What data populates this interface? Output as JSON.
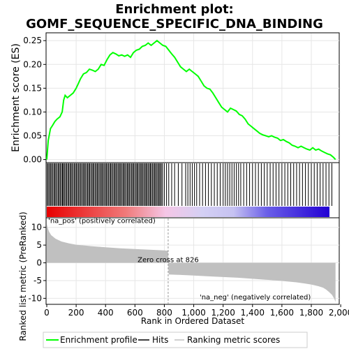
{
  "title_line1": "Enrichment plot:",
  "title_line2": "GOMF_SEQUENCE_SPECIFIC_DNA_BINDING",
  "colors": {
    "enrichment": "#00ff00",
    "hits": "#000000",
    "metric_fill": "#c0c0c0",
    "panel_border": "#000000",
    "grid": "#e6e6e6",
    "positive_band": "#e80000",
    "negative_band": "#2200d4"
  },
  "chart_data": [
    {
      "type": "line",
      "name": "enrichment-panel",
      "ylabel": "Enrichment score (ES)",
      "xlim": [
        0,
        1990
      ],
      "ylim": [
        -0.005,
        0.265
      ],
      "yticks": [
        0.0,
        0.05,
        0.1,
        0.15,
        0.2,
        0.25
      ],
      "ytick_labels": [
        "0.00",
        "0.05",
        "0.10",
        "0.15",
        "0.20",
        "0.25"
      ],
      "grid": true,
      "series": [
        {
          "name": "Enrichment profile",
          "x": [
            0,
            10,
            25,
            40,
            55,
            70,
            90,
            105,
            115,
            125,
            140,
            160,
            180,
            200,
            215,
            230,
            250,
            270,
            290,
            310,
            330,
            350,
            370,
            390,
            410,
            430,
            450,
            470,
            490,
            510,
            530,
            550,
            570,
            590,
            610,
            630,
            650,
            670,
            690,
            710,
            730,
            750,
            770,
            790,
            810,
            830,
            850,
            870,
            890,
            910,
            930,
            950,
            970,
            990,
            1010,
            1030,
            1050,
            1070,
            1090,
            1110,
            1130,
            1150,
            1170,
            1190,
            1210,
            1230,
            1250,
            1270,
            1290,
            1310,
            1330,
            1350,
            1370,
            1390,
            1410,
            1430,
            1450,
            1470,
            1490,
            1510,
            1530,
            1550,
            1570,
            1590,
            1610,
            1630,
            1650,
            1670,
            1690,
            1710,
            1730,
            1750,
            1770,
            1790,
            1810,
            1830,
            1850,
            1870,
            1890,
            1910,
            1930,
            1950,
            1965
          ],
          "y": [
            0.0,
            0.04,
            0.065,
            0.072,
            0.08,
            0.085,
            0.09,
            0.1,
            0.125,
            0.135,
            0.13,
            0.135,
            0.14,
            0.15,
            0.16,
            0.17,
            0.18,
            0.183,
            0.19,
            0.188,
            0.185,
            0.19,
            0.2,
            0.198,
            0.21,
            0.22,
            0.225,
            0.222,
            0.218,
            0.22,
            0.217,
            0.22,
            0.215,
            0.225,
            0.23,
            0.232,
            0.238,
            0.24,
            0.245,
            0.24,
            0.245,
            0.25,
            0.245,
            0.24,
            0.238,
            0.23,
            0.222,
            0.215,
            0.205,
            0.195,
            0.19,
            0.185,
            0.19,
            0.185,
            0.18,
            0.175,
            0.165,
            0.155,
            0.15,
            0.148,
            0.14,
            0.13,
            0.12,
            0.11,
            0.105,
            0.1,
            0.108,
            0.105,
            0.102,
            0.095,
            0.092,
            0.085,
            0.075,
            0.07,
            0.065,
            0.06,
            0.055,
            0.052,
            0.05,
            0.048,
            0.05,
            0.047,
            0.045,
            0.04,
            0.042,
            0.038,
            0.035,
            0.03,
            0.028,
            0.025,
            0.028,
            0.025,
            0.022,
            0.02,
            0.025,
            0.02,
            0.022,
            0.018,
            0.015,
            0.012,
            0.01,
            0.005,
            0.0
          ]
        }
      ]
    },
    {
      "type": "scatter",
      "name": "hits-panel",
      "series": [
        {
          "name": "Hits",
          "x": [
            3,
            10,
            18,
            25,
            32,
            40,
            48,
            55,
            62,
            70,
            78,
            85,
            92,
            100,
            107,
            113,
            120,
            128,
            135,
            143,
            150,
            158,
            165,
            172,
            180,
            188,
            195,
            202,
            210,
            217,
            225,
            232,
            240,
            248,
            255,
            262,
            270,
            278,
            285,
            292,
            300,
            308,
            315,
            322,
            330,
            338,
            345,
            352,
            360,
            368,
            375,
            382,
            390,
            398,
            405,
            412,
            420,
            428,
            435,
            442,
            450,
            458,
            465,
            472,
            480,
            488,
            495,
            502,
            510,
            518,
            525,
            532,
            540,
            548,
            555,
            562,
            570,
            578,
            585,
            592,
            600,
            608,
            615,
            622,
            630,
            638,
            645,
            652,
            660,
            668,
            675,
            682,
            690,
            698,
            705,
            712,
            720,
            728,
            735,
            742,
            750,
            758,
            765,
            772,
            780,
            788,
            800,
            815,
            830,
            850,
            870,
            895,
            920,
            945,
            960,
            975,
            990,
            1005,
            1020,
            1040,
            1060,
            1080,
            1100,
            1120,
            1140,
            1160,
            1180,
            1200,
            1215,
            1230,
            1245,
            1260,
            1275,
            1290,
            1305,
            1320,
            1340,
            1360,
            1380,
            1400,
            1420,
            1440,
            1460,
            1480,
            1500,
            1520,
            1540,
            1560,
            1580,
            1600,
            1620,
            1640,
            1660,
            1680,
            1700,
            1720,
            1740,
            1760,
            1780,
            1800,
            1820,
            1840,
            1860,
            1880,
            1900,
            1920,
            1940
          ]
        }
      ],
      "ranking_gradient": {
        "positive_color": "#e80000",
        "negative_color": "#2200d4"
      }
    },
    {
      "type": "area",
      "name": "ranked-metric-panel",
      "xlabel": "Rank in Ordered Dataset",
      "ylabel": "Ranked list metric (PreRanked)",
      "xlim": [
        0,
        1990
      ],
      "ylim": [
        -11.5,
        12.5
      ],
      "xticks": [
        0,
        200,
        400,
        600,
        800,
        1000,
        1200,
        1400,
        1600,
        1800,
        2000
      ],
      "xtick_labels": [
        "0",
        "200",
        "400",
        "600",
        "800",
        "1,000",
        "1,200",
        "1,400",
        "1,600",
        "1,800",
        "2,000"
      ],
      "yticks": [
        -10,
        -5,
        0,
        5,
        10
      ],
      "ytick_labels": [
        "-10",
        "-5",
        "0",
        "5",
        "10"
      ],
      "grid": true,
      "series": [
        {
          "name": "Ranking metric scores",
          "x": [
            0,
            5,
            15,
            30,
            60,
            100,
            150,
            200,
            300,
            400,
            500,
            600,
            700,
            800,
            825,
            826,
            830,
            900,
            1000,
            1100,
            1200,
            1300,
            1400,
            1500,
            1600,
            1700,
            1750,
            1800,
            1850,
            1880,
            1900,
            1920,
            1940,
            1955,
            1965
          ],
          "y": [
            11.0,
            10.0,
            8.8,
            7.8,
            6.8,
            6.0,
            5.5,
            5.1,
            4.7,
            4.4,
            4.1,
            3.9,
            3.7,
            3.5,
            3.4,
            0,
            -3.3,
            -3.4,
            -3.6,
            -3.8,
            -4.0,
            -4.2,
            -4.5,
            -4.8,
            -5.1,
            -5.5,
            -5.8,
            -6.1,
            -6.6,
            -7.0,
            -7.5,
            -8.2,
            -9.0,
            -10.0,
            -11.0
          ]
        }
      ],
      "annotations": [
        {
          "text": "'na_pos' (positively correlated)",
          "x": 10,
          "y": 11.2
        },
        {
          "text": "Zero cross at 826",
          "x": 826,
          "y": 0.2
        },
        {
          "text": "'na_neg' (negatively correlated)",
          "x": 1040,
          "y": -10.3
        }
      ]
    }
  ],
  "legend": {
    "items": [
      {
        "label": "Enrichment profile"
      },
      {
        "label": "Hits"
      },
      {
        "label": "Ranking metric scores"
      }
    ]
  }
}
